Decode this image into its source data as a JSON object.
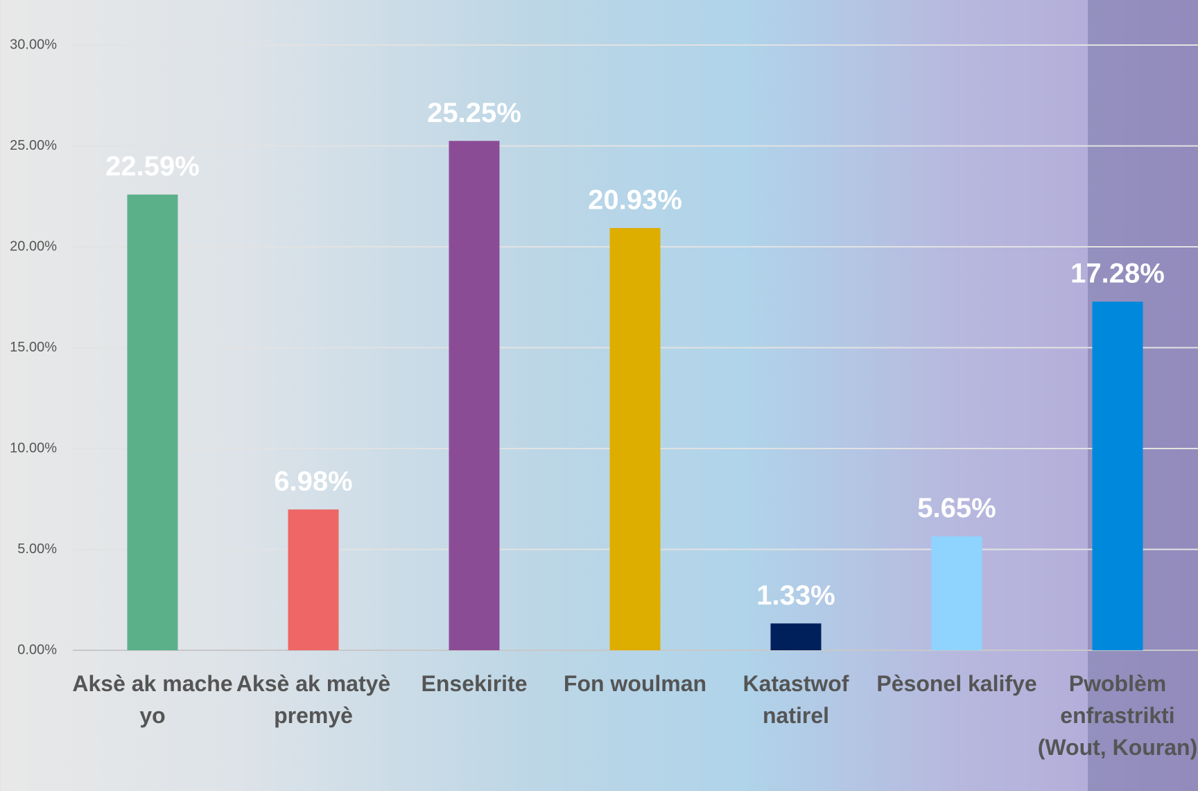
{
  "chart_data": {
    "type": "bar",
    "categories": [
      "Aksè ak mache yo",
      "Aksè ak matyè premyè",
      "Ensekirite",
      "Fon woulman",
      "Katastwof natirel",
      "Pèsonel kalifye",
      "Pwoblèm enfrastrikti (Wout, Kouran)"
    ],
    "values": [
      22.59,
      6.98,
      25.25,
      20.93,
      1.33,
      5.65,
      17.28
    ],
    "value_labels": [
      "22.59%",
      "6.98%",
      "25.25%",
      "20.93%",
      "1.33%",
      "5.65%",
      "17.28%"
    ],
    "colors": [
      "#5bb08a",
      "#ee6666",
      "#8b4c96",
      "#ddae00",
      "#00205b",
      "#8fd3ff",
      "#0088dd"
    ],
    "ylim": [
      0,
      30
    ],
    "yticks": [
      {
        "value": 0,
        "label": "0.00%"
      },
      {
        "value": 5,
        "label": "5.00%"
      },
      {
        "value": 10,
        "label": "10.00%"
      },
      {
        "value": 15,
        "label": "15.00%"
      },
      {
        "value": 20,
        "label": "20.00%"
      },
      {
        "value": 25,
        "label": "25.00%"
      },
      {
        "value": 30,
        "label": "30.00%"
      }
    ],
    "grid": true
  }
}
